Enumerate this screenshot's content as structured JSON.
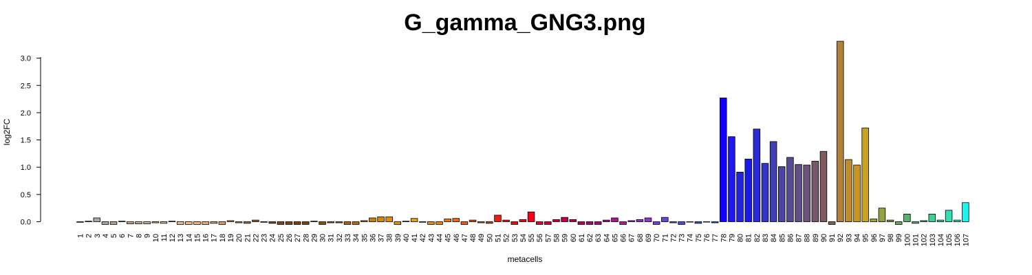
{
  "chart_data": {
    "type": "bar",
    "title": "G_gamma_GNG3.png",
    "xlabel": "metacells",
    "ylabel": "log2FC",
    "ylim": [
      -0.05,
      3.35
    ],
    "yticks": [
      "0.0",
      "0.5",
      "1.0",
      "1.5",
      "2.0",
      "2.5",
      "3.0"
    ],
    "grid": false,
    "categories": [
      "1",
      "2",
      "3",
      "4",
      "5",
      "6",
      "7",
      "8",
      "9",
      "10",
      "11",
      "12",
      "13",
      "14",
      "15",
      "16",
      "17",
      "18",
      "19",
      "20",
      "21",
      "22",
      "23",
      "24",
      "25",
      "26",
      "27",
      "28",
      "29",
      "30",
      "31",
      "32",
      "33",
      "34",
      "35",
      "36",
      "37",
      "38",
      "39",
      "40",
      "41",
      "42",
      "43",
      "44",
      "45",
      "46",
      "47",
      "48",
      "49",
      "50",
      "51",
      "52",
      "53",
      "54",
      "55",
      "56",
      "57",
      "58",
      "59",
      "60",
      "61",
      "62",
      "63",
      "64",
      "65",
      "66",
      "67",
      "68",
      "69",
      "70",
      "71",
      "72",
      "73",
      "74",
      "75",
      "76",
      "77",
      "78",
      "79",
      "80",
      "81",
      "82",
      "83",
      "84",
      "85",
      "86",
      "87",
      "88",
      "89",
      "90",
      "91",
      "92",
      "93",
      "94",
      "95",
      "96",
      "97",
      "98",
      "99",
      "100",
      "101",
      "102",
      "103",
      "104",
      "105",
      "106",
      "107"
    ],
    "values": [
      -0.01,
      0.01,
      0.07,
      -0.05,
      -0.05,
      0.01,
      -0.04,
      -0.04,
      -0.04,
      -0.02,
      -0.03,
      0.01,
      -0.05,
      -0.05,
      -0.05,
      -0.05,
      -0.03,
      -0.05,
      0.02,
      -0.02,
      -0.03,
      0.03,
      -0.01,
      -0.03,
      -0.05,
      -0.05,
      -0.05,
      -0.05,
      0.01,
      -0.05,
      -0.02,
      -0.02,
      -0.05,
      -0.05,
      0.02,
      0.07,
      0.09,
      0.09,
      -0.05,
      0.01,
      0.06,
      -0.01,
      -0.05,
      -0.05,
      0.05,
      0.06,
      -0.05,
      0.03,
      -0.02,
      -0.03,
      0.12,
      0.03,
      -0.05,
      0.04,
      0.18,
      -0.05,
      -0.05,
      0.04,
      0.08,
      0.04,
      -0.05,
      -0.05,
      -0.05,
      0.03,
      0.07,
      -0.05,
      0.02,
      0.04,
      0.07,
      -0.05,
      0.08,
      -0.02,
      -0.05,
      0.0,
      -0.03,
      0.0,
      -0.02,
      2.27,
      1.56,
      0.91,
      1.15,
      1.7,
      1.07,
      1.47,
      1.01,
      1.18,
      1.05,
      1.04,
      1.11,
      1.29,
      -0.05,
      3.31,
      1.14,
      1.04,
      1.72,
      0.05,
      0.25,
      0.03,
      -0.05,
      0.14,
      -0.03,
      0.02,
      0.14,
      0.03,
      0.21,
      0.03,
      0.35
    ],
    "colors": [
      "#333333",
      "#6e6e6e",
      "#a9a9a9",
      "#b0a599",
      "#b7a08f",
      "#c5a385",
      "#cba784",
      "#d3ac86",
      "#d8ae8a",
      "#dcb08e",
      "#e3b38f",
      "#eab796",
      "#f4b98a",
      "#f9b98b",
      "#f6b47d",
      "#efad73",
      "#e6a56d",
      "#dd9a64",
      "#d08c57",
      "#c07d48",
      "#b06d3a",
      "#a35f2d",
      "#965222",
      "#8b4818",
      "#844113",
      "#80400f",
      "#7e3f0d",
      "#7f400e",
      "#8b4a0e",
      "#8f4d0b",
      "#9b5508",
      "#a65c06",
      "#b06206",
      "#bb6a05",
      "#c57406",
      "#d07d06",
      "#d98406",
      "#e08c07",
      "#e79308",
      "#e89a0a",
      "#e8a00c",
      "#f0950d",
      "#f38b0c",
      "#f5810c",
      "#f6760e",
      "#f26a10",
      "#ed5e12",
      "#e85214",
      "#e24616",
      "#dc3a18",
      "#ea1f12",
      "#e81612",
      "#e80a10",
      "#ed0710",
      "#f8001b",
      "#e7002b",
      "#d90038",
      "#cd0044",
      "#c2004e",
      "#b7005a",
      "#b10066",
      "#b00073",
      "#b2007f",
      "#ae0a8c",
      "#aa1499",
      "#a51da6",
      "#a127b3",
      "#9c30bf",
      "#8f38cb",
      "#7e3ed4",
      "#6c44dd",
      "#5b49e4",
      "#4a4deb",
      "#3a51f0",
      "#2b55f4",
      "#2058f8",
      "#1559fb",
      "#1000ff",
      "#1e17f0",
      "#2222e2",
      "#1a1ae6",
      "#2a2ad6",
      "#3535c6",
      "#4040b5",
      "#4c44a5",
      "#564a95",
      "#5f4f86",
      "#6b537a",
      "#75586e",
      "#805a60",
      "#8a5f52",
      "#b0823a",
      "#bf8d2e",
      "#ca9623",
      "#c8a224",
      "#a9a52f",
      "#93a340",
      "#7fa350",
      "#6ca95f",
      "#5bb16c",
      "#4fb97a",
      "#45c488",
      "#3fcd96",
      "#39d6a4",
      "#32deb3",
      "#2ce8c2",
      "#1ff4f0"
    ]
  }
}
